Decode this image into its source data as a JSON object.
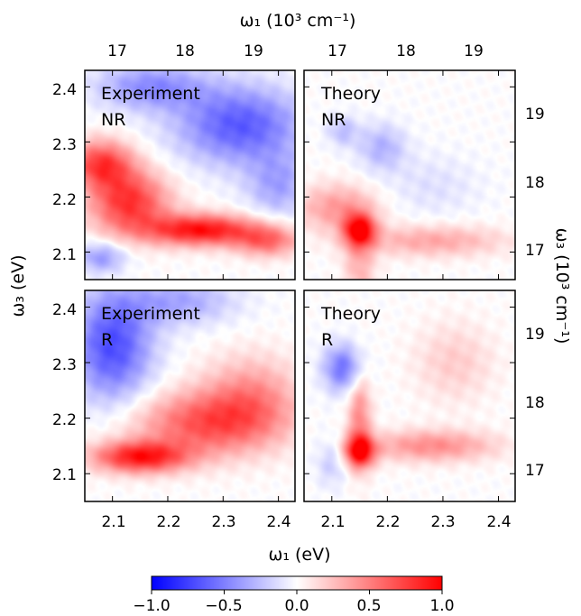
{
  "chart_data": {
    "type": "heatmap",
    "axes": {
      "bottom_label": "ω₁ (eV)",
      "left_label": "ω₃ (eV)",
      "top_label": "ω₁ (10³ cm⁻¹)",
      "right_label": "ω₃ (10³ cm⁻¹)",
      "ev_range": [
        2.05,
        2.43
      ],
      "ev_ticks": [
        "2.1",
        "2.2",
        "2.3",
        "2.4"
      ],
      "wavenumber_ticks": [
        "17",
        "18",
        "19"
      ],
      "grid": false
    },
    "panels": [
      {
        "label_line1": "Experiment",
        "label_line2": "NR",
        "features": [
          {
            "x": 2.08,
            "y": 2.26,
            "sx": 0.04,
            "sy": 0.03,
            "a": 0.75
          },
          {
            "x": 2.13,
            "y": 2.19,
            "sx": 0.05,
            "sy": 0.04,
            "a": 0.8
          },
          {
            "x": 2.26,
            "y": 2.14,
            "sx": 0.07,
            "sy": 0.02,
            "a": 0.95
          },
          {
            "x": 2.38,
            "y": 2.12,
            "sx": 0.04,
            "sy": 0.02,
            "a": 0.55
          },
          {
            "x": 2.33,
            "y": 2.33,
            "sx": 0.08,
            "sy": 0.05,
            "a": -0.65
          },
          {
            "x": 2.17,
            "y": 2.4,
            "sx": 0.07,
            "sy": 0.03,
            "a": -0.45
          },
          {
            "x": 2.08,
            "y": 2.09,
            "sx": 0.03,
            "sy": 0.02,
            "a": -0.4
          },
          {
            "x": 2.4,
            "y": 2.22,
            "sx": 0.04,
            "sy": 0.04,
            "a": -0.35
          }
        ]
      },
      {
        "label_line1": "Theory",
        "label_line2": "NR",
        "features": [
          {
            "x": 2.15,
            "y": 2.14,
            "sx": 0.02,
            "sy": 0.02,
            "a": 0.9
          },
          {
            "x": 2.11,
            "y": 2.18,
            "sx": 0.05,
            "sy": 0.03,
            "a": 0.4
          },
          {
            "x": 2.28,
            "y": 2.12,
            "sx": 0.09,
            "sy": 0.02,
            "a": 0.35
          },
          {
            "x": 2.15,
            "y": 2.08,
            "sx": 0.02,
            "sy": 0.05,
            "a": 0.3
          },
          {
            "x": 2.19,
            "y": 2.29,
            "sx": 0.03,
            "sy": 0.03,
            "a": -0.3
          },
          {
            "x": 2.12,
            "y": 2.32,
            "sx": 0.02,
            "sy": 0.02,
            "a": -0.25
          },
          {
            "x": 2.28,
            "y": 2.22,
            "sx": 0.06,
            "sy": 0.04,
            "a": -0.12
          }
        ]
      },
      {
        "label_line1": "Experiment",
        "label_line2": "R",
        "features": [
          {
            "x": 2.15,
            "y": 2.13,
            "sx": 0.06,
            "sy": 0.02,
            "a": 0.9
          },
          {
            "x": 2.27,
            "y": 2.19,
            "sx": 0.09,
            "sy": 0.04,
            "a": 0.65
          },
          {
            "x": 2.35,
            "y": 2.24,
            "sx": 0.06,
            "sy": 0.05,
            "a": 0.4
          },
          {
            "x": 2.1,
            "y": 2.33,
            "sx": 0.05,
            "sy": 0.07,
            "a": -0.7
          },
          {
            "x": 2.22,
            "y": 2.41,
            "sx": 0.07,
            "sy": 0.03,
            "a": -0.35
          }
        ]
      },
      {
        "label_line1": "Theory",
        "label_line2": "R",
        "features": [
          {
            "x": 2.15,
            "y": 2.14,
            "sx": 0.02,
            "sy": 0.02,
            "a": 0.85
          },
          {
            "x": 2.15,
            "y": 2.2,
            "sx": 0.015,
            "sy": 0.06,
            "a": 0.45
          },
          {
            "x": 2.28,
            "y": 2.15,
            "sx": 0.08,
            "sy": 0.02,
            "a": 0.45
          },
          {
            "x": 2.32,
            "y": 2.3,
            "sx": 0.05,
            "sy": 0.05,
            "a": 0.2
          },
          {
            "x": 2.12,
            "y": 2.29,
            "sx": 0.025,
            "sy": 0.03,
            "a": -0.55
          },
          {
            "x": 2.1,
            "y": 2.12,
            "sx": 0.02,
            "sy": 0.03,
            "a": -0.2
          }
        ]
      }
    ],
    "colorbar": {
      "colormap": "bwr",
      "range": [
        -1.0,
        1.0
      ],
      "ticks": [
        "−1.0",
        "−0.5",
        "0.0",
        "0.5",
        "1.0"
      ],
      "colors": {
        "negative": "#0000ff",
        "zero": "#ffffff",
        "positive": "#ff0000"
      }
    }
  }
}
